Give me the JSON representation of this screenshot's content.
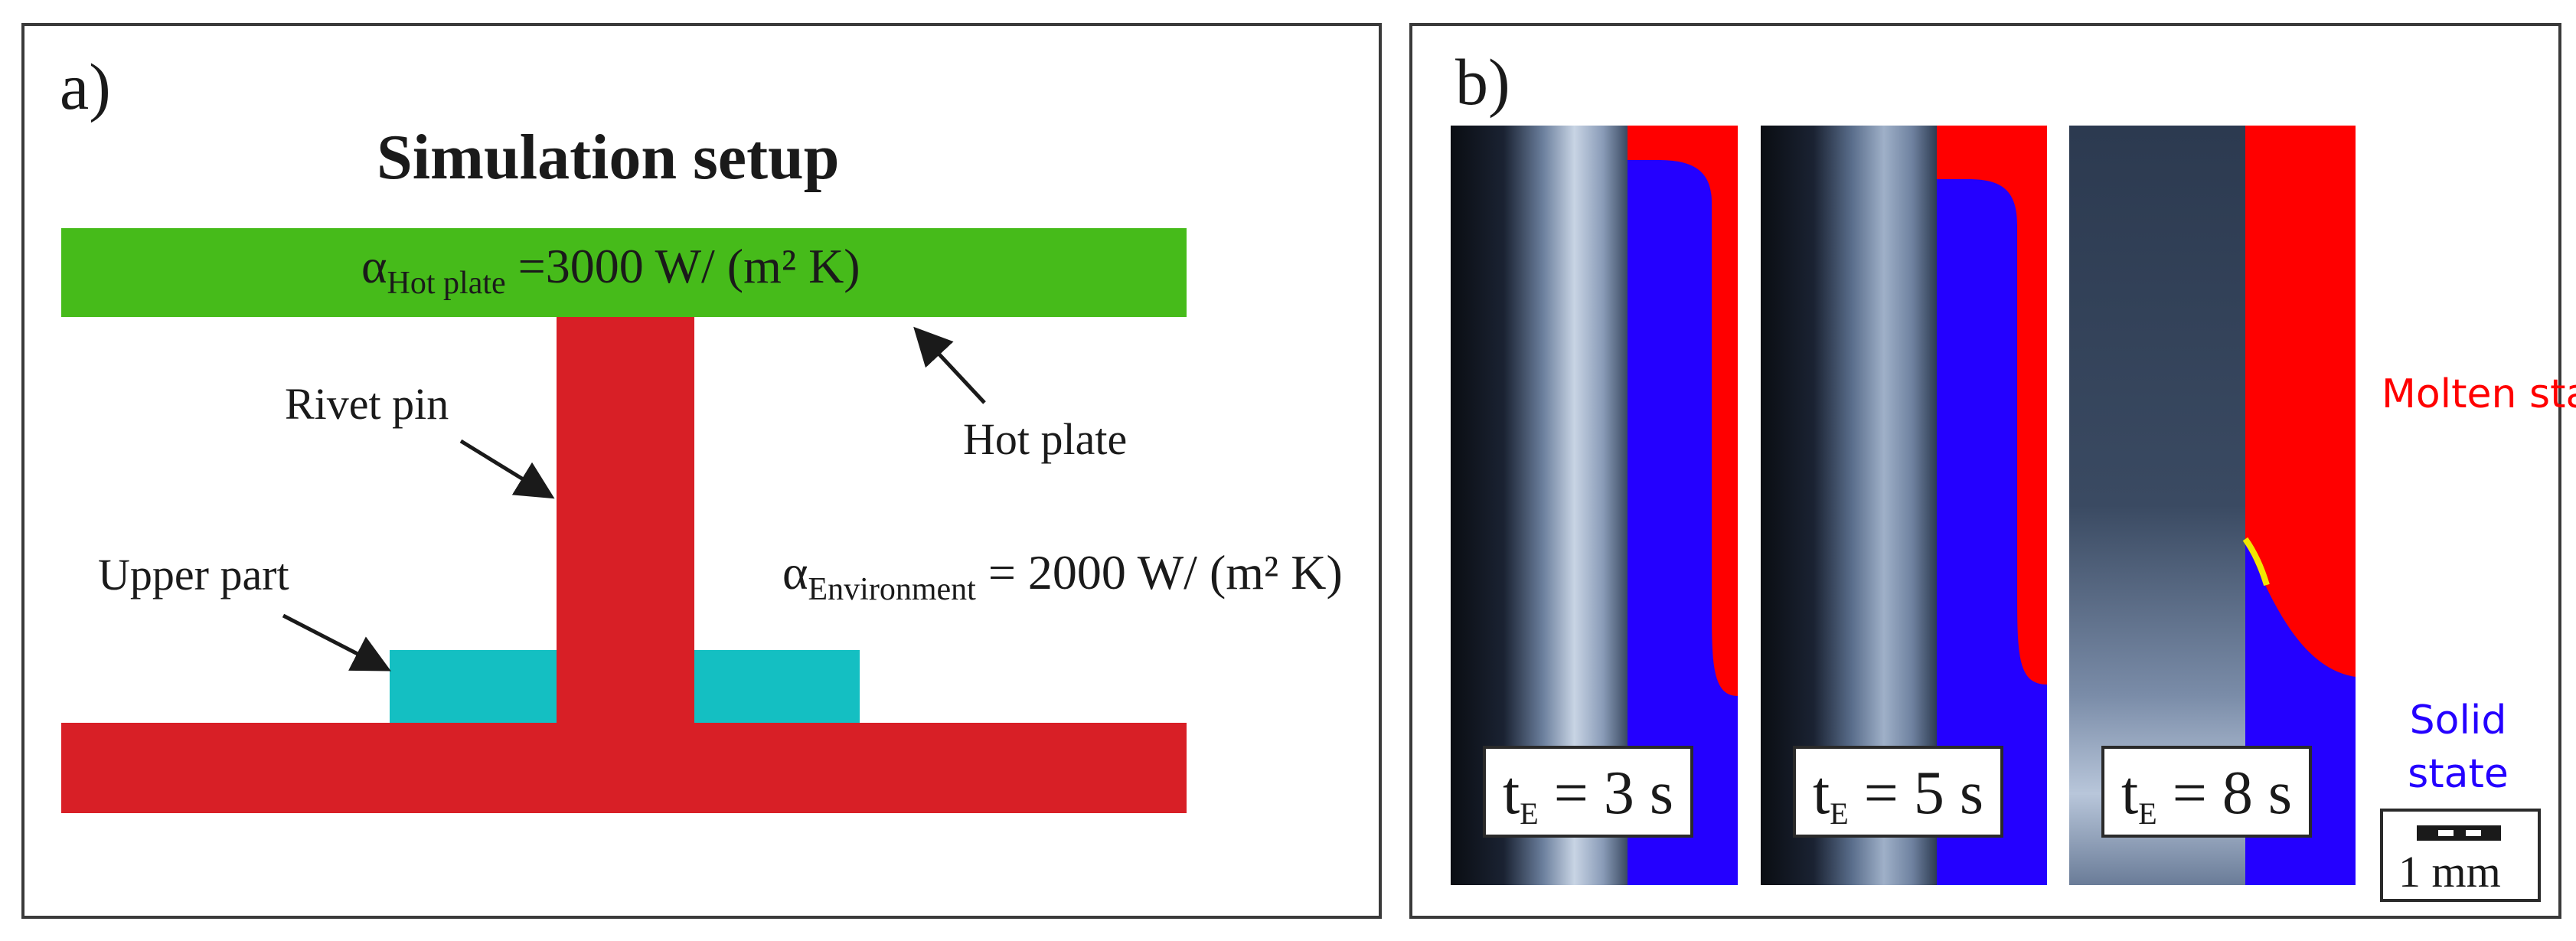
{
  "panel_a": {
    "label": "a)",
    "title": "Simulation setup",
    "hot_plate_eq": {
      "symbol": "α",
      "subscript": "Hot plate",
      "rest": " =3000 W/ (m² K)"
    },
    "labels": {
      "rivet_pin": "Rivet pin",
      "hot_plate": "Hot plate",
      "upper_part": "Upper part"
    },
    "environment_eq": {
      "symbol": "α",
      "subscript": "Environment",
      "rest": " = 2000 W/ (m² K)"
    },
    "colors": {
      "hot_plate": "#46bb1a",
      "rivet": "#d81f26",
      "upper_part": "#14bfc2"
    }
  },
  "panel_b": {
    "label": "b)",
    "times": [
      {
        "t": "t",
        "sub": "E",
        "value": " = 3 s"
      },
      {
        "t": "t",
        "sub": "E",
        "value": " = 5 s"
      },
      {
        "t": "t",
        "sub": "E",
        "value": " = 8 s"
      }
    ],
    "legend": {
      "molten": "Molten state",
      "solid": "Solid state"
    },
    "scale": "1 mm",
    "colors": {
      "molten": "#ff0000",
      "solid": "#2400ff"
    }
  }
}
